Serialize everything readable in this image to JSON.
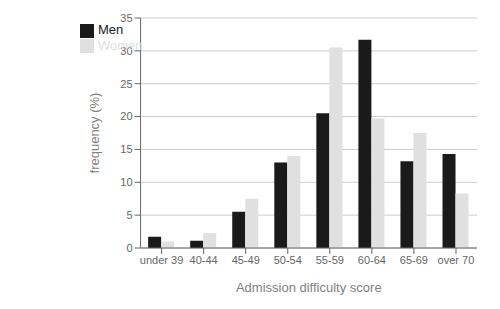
{
  "chart_data": {
    "type": "bar",
    "categories": [
      "under 39",
      "40-44",
      "45-49",
      "50-54",
      "55-59",
      "60-64",
      "65-69",
      "over 70"
    ],
    "series": [
      {
        "name": "Men",
        "color": "#1a1a1a",
        "values": [
          1.7,
          1.1,
          5.5,
          13.0,
          20.5,
          31.7,
          13.2,
          14.3
        ]
      },
      {
        "name": "Women",
        "color": "#e0e0e0",
        "values": [
          1.0,
          2.3,
          7.5,
          14.0,
          30.5,
          19.7,
          17.5,
          8.3
        ]
      }
    ],
    "xlabel": "Admission difficulty score",
    "ylabel": "frequency (%)",
    "ylim": [
      0,
      35
    ],
    "yticks": [
      0,
      5,
      10,
      15,
      20,
      25,
      30,
      35
    ],
    "grid": true,
    "legend": "upper left"
  }
}
